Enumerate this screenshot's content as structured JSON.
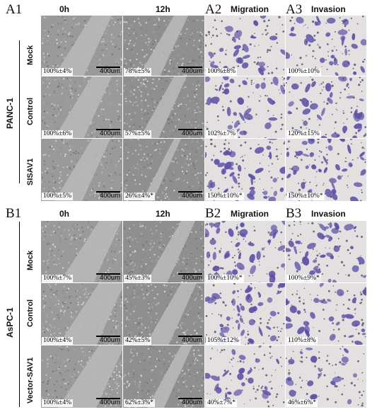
{
  "panels": {
    "A1": "A1",
    "A2": "A2",
    "A3": "A3",
    "B1": "B1",
    "B2": "B2",
    "B3": "B3"
  },
  "column_titles": {
    "time_0": "0h",
    "time_12": "12h",
    "migration": "Migration",
    "invasion": "Invasion"
  },
  "scale_bar_label": "400um",
  "groups": {
    "A": {
      "cell_line": "PANC-1",
      "rows": [
        {
          "label": "Mock",
          "stats": [
            "100%±4%",
            "78%±5%",
            "100%±8%",
            "100%±10%"
          ]
        },
        {
          "label": "Control",
          "stats": [
            "100%±6%",
            "57%±5%",
            "102%±7%",
            "120%±15%"
          ]
        },
        {
          "label": "SISAV1",
          "stats": [
            "100%±5%",
            "26%±4%*",
            "150%±10%*",
            "150%±10%*"
          ]
        }
      ]
    },
    "B": {
      "cell_line": "AsPC-1",
      "rows": [
        {
          "label": "Mock",
          "stats": [
            "100%±7%",
            "45%±3%",
            "100%±10%*",
            "100%±9%*"
          ]
        },
        {
          "label": "Control",
          "stats": [
            "100%±4%",
            "42%±5%",
            "105%±12%",
            "110%±8%"
          ]
        },
        {
          "label": "Vector-SAV1",
          "stats": [
            "100%±4%",
            "62%±3%*",
            "40%±7%*",
            "46%±6%*"
          ]
        }
      ]
    }
  },
  "colors": {
    "scratch_cells": "#9a9a9a",
    "scratch_gap": "#b8b8b8",
    "stain_background": "#e4e0df",
    "stain_cells": "#5a4ea8"
  }
}
